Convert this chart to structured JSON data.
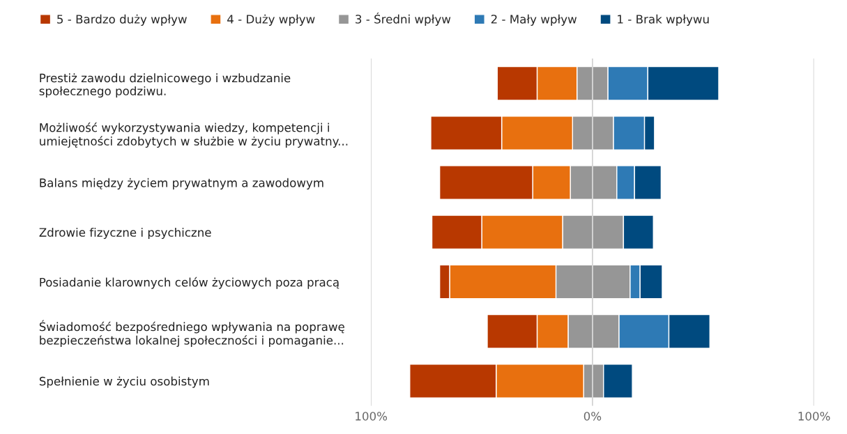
{
  "chart_data": {
    "type": "bar",
    "orientation": "horizontal",
    "stacked": true,
    "categories": [
      "Prestiż zawodu dzielnicowego i wzbudzanie\nspołecznego podziwu.",
      "Możliwość wykorzystywania wiedzy, kompetencji i\numiejętności zdobytych w służbie w życiu prywatny...",
      "Balans między życiem prywatnym a zawodowym",
      "Zdrowie fizyczne i psychiczne",
      "Posiadanie klarownych celów życiowych poza pracą",
      "Świadomość bezpośredniego wpływania na poprawę\nbezpieczeństwa lokalnej społeczności i pomaganie...",
      "Spełnienie w życiu osobistym"
    ],
    "series": [
      {
        "color": "#969696",
        "values": [
          -7,
          -9,
          -10,
          -13.5,
          -16.5,
          -11,
          -4
        ]
      },
      {
        "name": "4 - Duży wpływ",
        "color": "#e8700f",
        "values": [
          -18,
          -32,
          -17,
          -36.5,
          -48,
          -14,
          -39.5
        ]
      },
      {
        "name": "5 - Bardzo duży wpływ",
        "color": "#b83800",
        "values": [
          -18,
          -32,
          -42,
          -22.5,
          -4.5,
          -22.5,
          -39
        ]
      },
      {
        "name": "3 - Średni wpływ",
        "color": "#969696",
        "values": [
          7,
          9.5,
          11,
          14,
          17,
          12,
          5
        ]
      },
      {
        "name": "2 - Mały wpływ",
        "color": "#2e7ab5",
        "values": [
          18,
          14,
          8,
          null,
          4.5,
          22.5,
          null
        ]
      },
      {
        "name": "1 - Brak wpływu",
        "color": "#004a7f",
        "values": [
          32,
          4.5,
          12,
          13.5,
          10,
          18.5,
          13
        ]
      }
    ],
    "xlim": [
      -100,
      100
    ],
    "xticks": [
      {
        "value": -100,
        "label": "100%"
      },
      {
        "value": 0,
        "label": "0%"
      },
      {
        "value": 100,
        "label": "100%"
      }
    ],
    "grid": "x",
    "legend": "top left"
  }
}
